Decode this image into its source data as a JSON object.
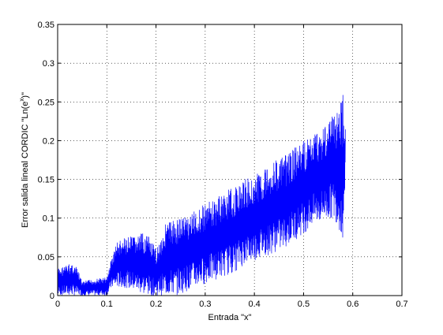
{
  "figure": {
    "background": "#ffffff"
  },
  "chart_data": {
    "type": "line",
    "title": "",
    "xlabel": "Entrada \"x\"",
    "ylabel_parts": {
      "prefix": "Error salida lineal CORDIC \"Ln(e",
      "superscript": "x",
      "suffix": ")\""
    },
    "xlim": [
      0,
      0.7
    ],
    "ylim": [
      0,
      0.35
    ],
    "x_ticks": [
      0,
      0.1,
      0.2,
      0.3,
      0.4,
      0.5,
      0.6,
      0.7
    ],
    "x_tick_labels": [
      "0",
      "0.1",
      "0.2",
      "0.3",
      "0.4",
      "0.5",
      "0.6",
      "0.7"
    ],
    "y_ticks": [
      0,
      0.05,
      0.1,
      0.15,
      0.2,
      0.25,
      0.3,
      0.35
    ],
    "y_tick_labels": [
      "0",
      "0.05",
      "0.1",
      "0.15",
      "0.2",
      "0.25",
      "0.3",
      "0.35"
    ],
    "grid": true,
    "grid_style": "dotted",
    "legend": "none",
    "series": [
      {
        "color": "#0000ff",
        "envelope": {
          "x": [
            0.0,
            0.01,
            0.02,
            0.03,
            0.04,
            0.05,
            0.06,
            0.08,
            0.1,
            0.11,
            0.12,
            0.14,
            0.16,
            0.18,
            0.2,
            0.22,
            0.24,
            0.26,
            0.28,
            0.3,
            0.32,
            0.34,
            0.36,
            0.38,
            0.4,
            0.42,
            0.44,
            0.46,
            0.48,
            0.5,
            0.52,
            0.54,
            0.56,
            0.57,
            0.58,
            0.585
          ],
          "upper": [
            0.035,
            0.038,
            0.04,
            0.043,
            0.035,
            0.018,
            0.02,
            0.022,
            0.024,
            0.05,
            0.07,
            0.075,
            0.078,
            0.082,
            0.06,
            0.095,
            0.1,
            0.105,
            0.11,
            0.12,
            0.125,
            0.135,
            0.14,
            0.15,
            0.155,
            0.165,
            0.175,
            0.18,
            0.19,
            0.2,
            0.21,
            0.22,
            0.235,
            0.245,
            0.255,
            0.225
          ],
          "lower": [
            0.0,
            0.0,
            0.0,
            0.0,
            0.0,
            0.0,
            0.0,
            0.0,
            0.0,
            0.01,
            0.01,
            0.01,
            0.005,
            0.0,
            0.0,
            0.0,
            0.0,
            0.005,
            0.01,
            0.015,
            0.02,
            0.025,
            0.03,
            0.04,
            0.045,
            0.05,
            0.055,
            0.06,
            0.07,
            0.08,
            0.09,
            0.095,
            0.1,
            0.09,
            0.07,
            0.15
          ]
        },
        "peak": {
          "x": 0.58,
          "y": 0.259
        }
      }
    ]
  }
}
